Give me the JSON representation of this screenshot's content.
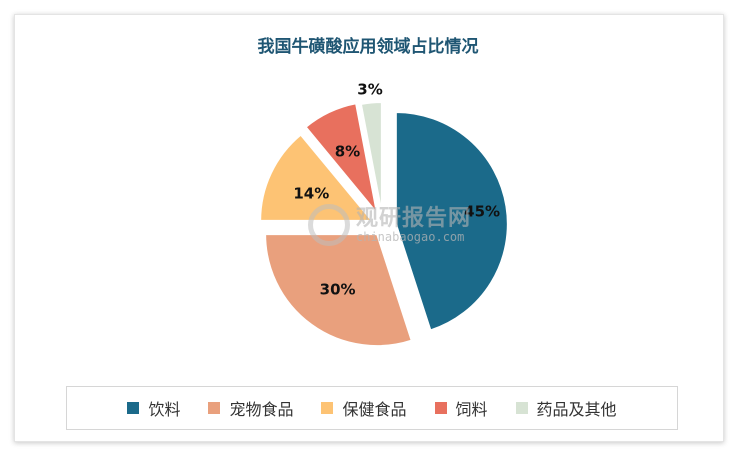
{
  "chart_data": {
    "type": "pie",
    "title": "我国牛磺酸应用领域占比情况",
    "categories": [
      "饮料",
      "宠物食品",
      "保健食品",
      "饲料",
      "药品及其他"
    ],
    "values": [
      45,
      30,
      14,
      8,
      3
    ],
    "labels": [
      "45%",
      "30%",
      "14%",
      "8%",
      "3%"
    ],
    "colors": [
      "#1b6a8a",
      "#e9a07d",
      "#fdc374",
      "#e8705e",
      "#d7e3d4"
    ],
    "legend_position": "bottom",
    "exploded": true
  },
  "watermark": {
    "main": "观研报告网",
    "sub": "chinabaogao.com"
  }
}
